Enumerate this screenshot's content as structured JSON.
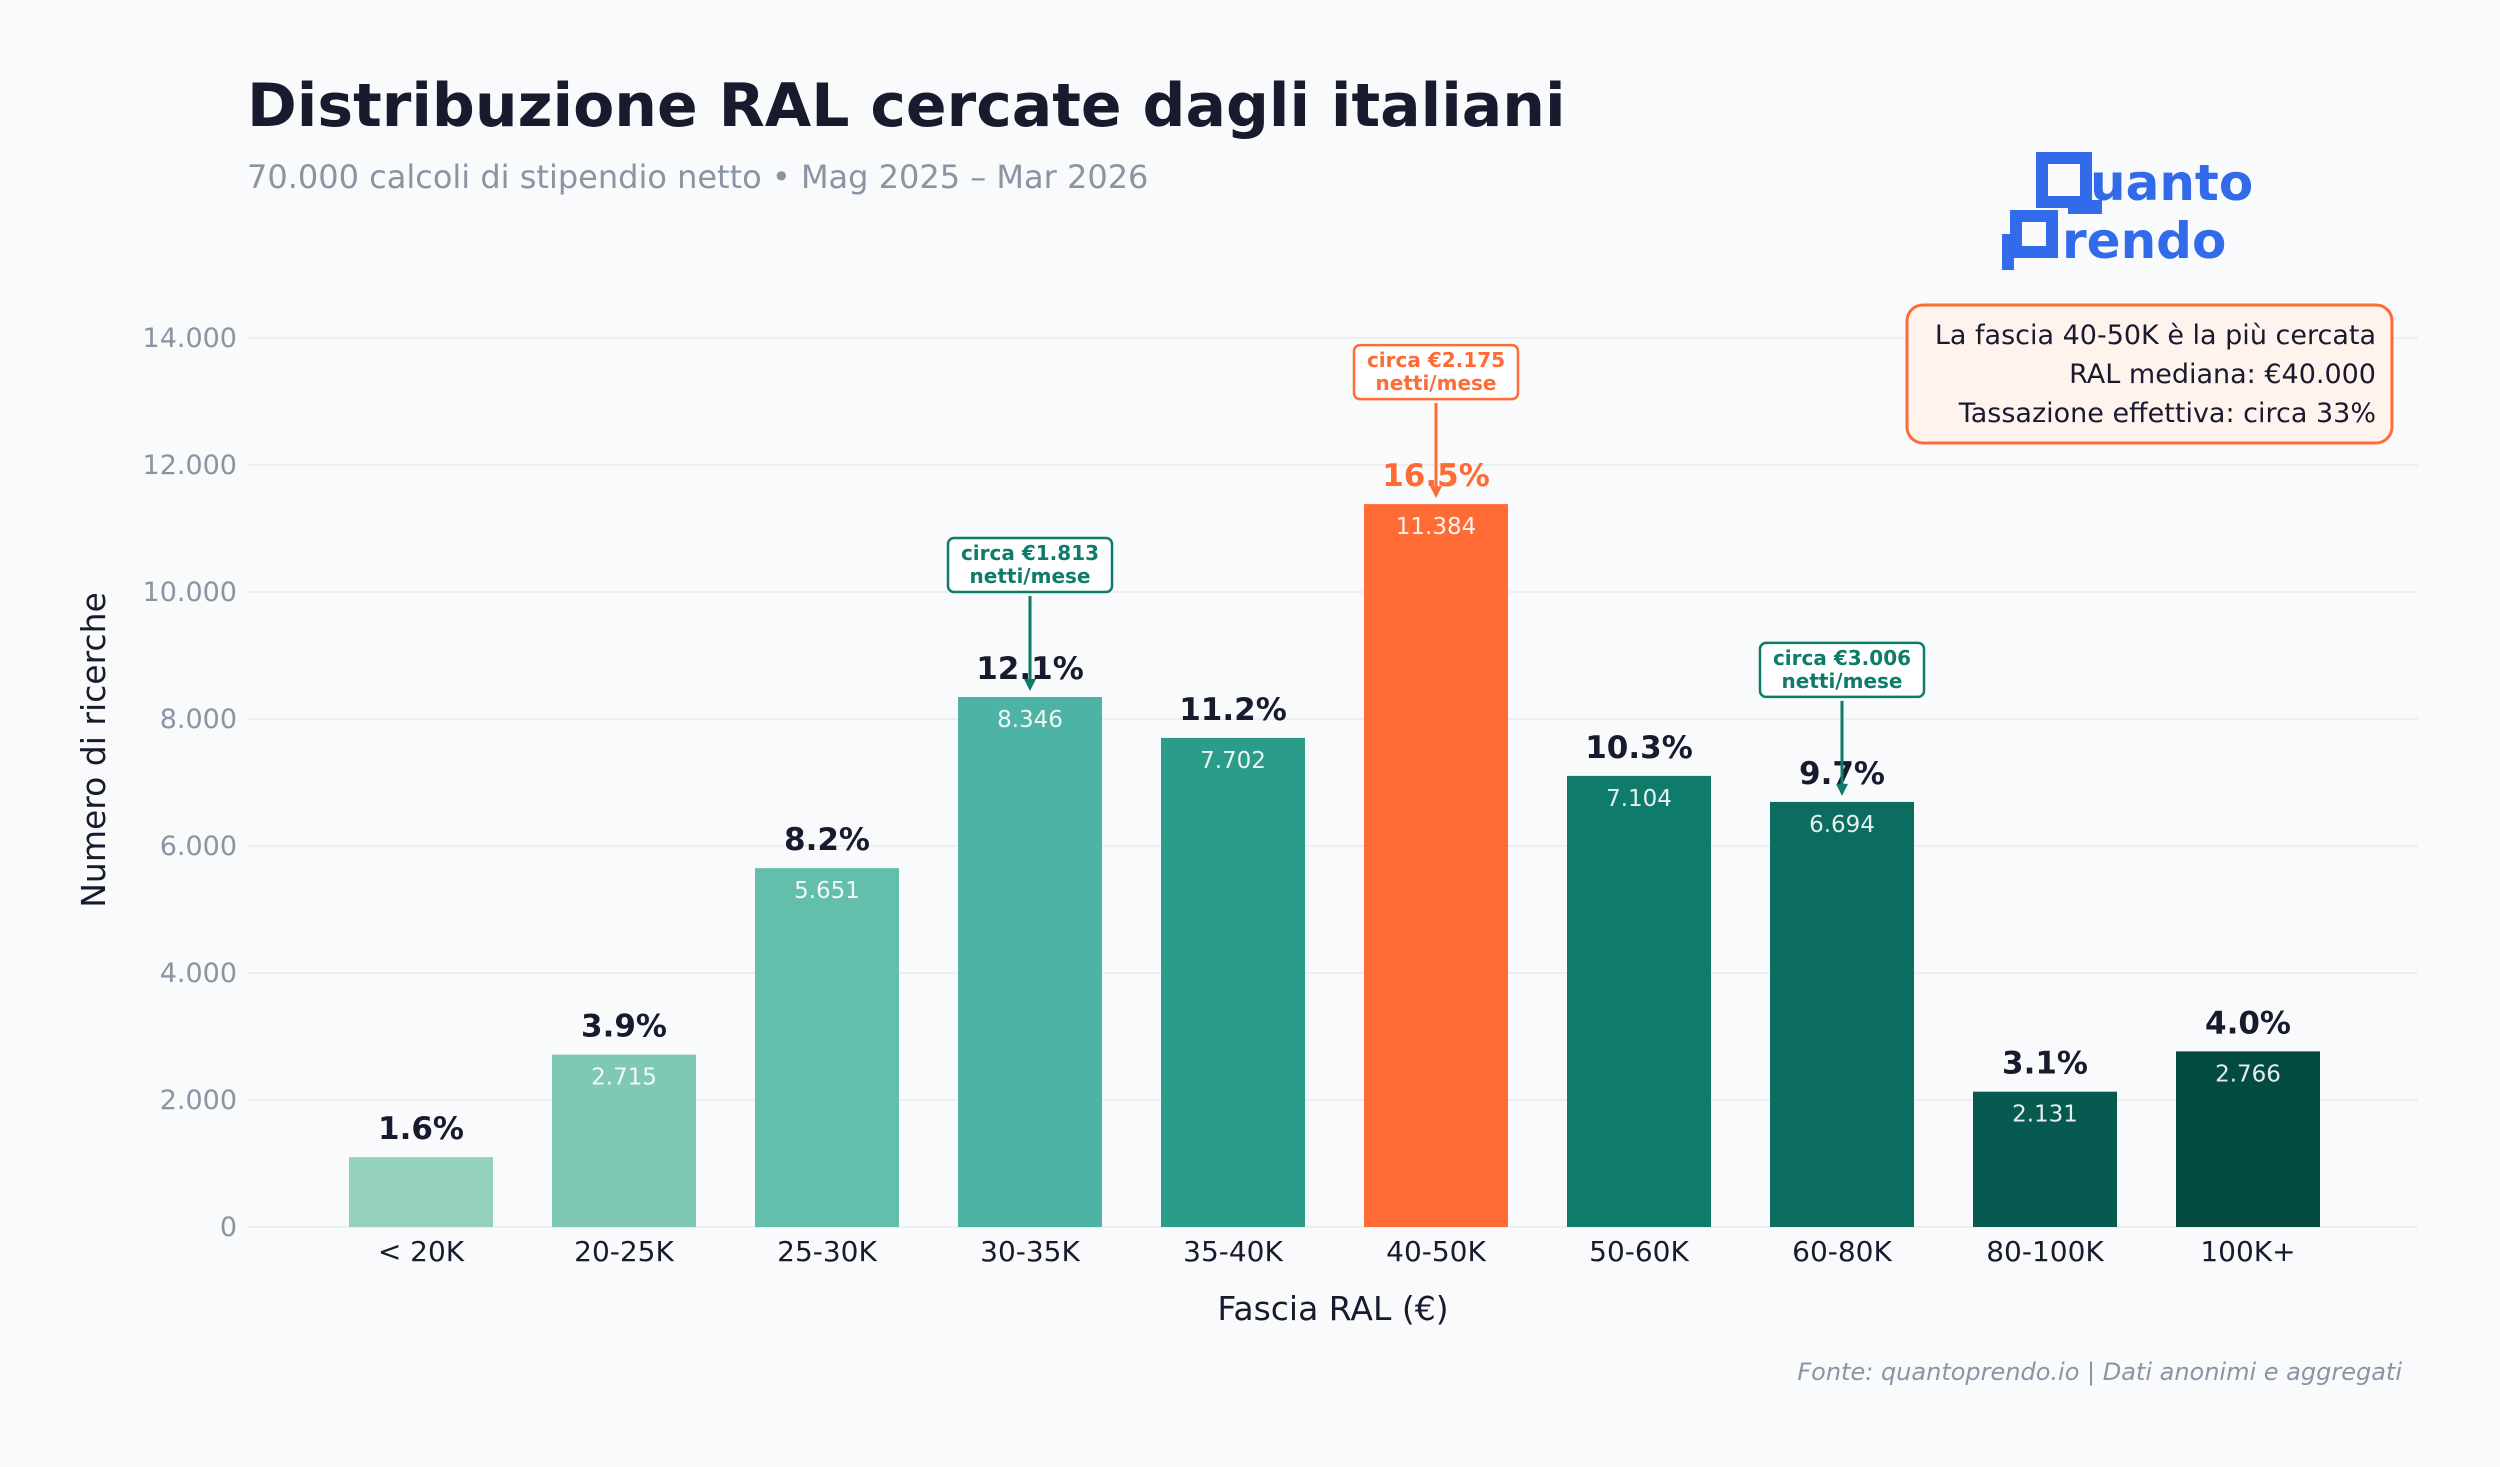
{
  "title": "Distribuzione RAL cercate dagli italiani",
  "subtitle": "70.000 calcoli di stipendio netto  •  Mag 2025 – Mar 2026",
  "logo": {
    "line1": "uanto",
    "line2": "rendo",
    "color": "#316bea"
  },
  "info_box": {
    "lines": [
      "La fascia 40-50K è la più cercata",
      "RAL mediana: €40.000",
      "Tassazione effettiva: circa 33%"
    ],
    "border_color": "#ff6b35",
    "fill_color": "#fff3ee"
  },
  "footer": "Fonte: quantoprendo.io  |  Dati anonimi e aggregati",
  "chart_data": {
    "type": "bar",
    "xlabel": "Fascia RAL (€)",
    "ylabel": "Numero di ricerche",
    "ylim": [
      0,
      14500
    ],
    "yticks": [
      0,
      2000,
      4000,
      6000,
      8000,
      10000,
      12000,
      14000
    ],
    "ytick_labels": [
      "0",
      "2.000",
      "4.000",
      "6.000",
      "8.000",
      "10.000",
      "12.000",
      "14.000"
    ],
    "grid": true,
    "categories": [
      "< 20K",
      "20-25K",
      "25-30K",
      "30-35K",
      "35-40K",
      "40-50K",
      "50-60K",
      "60-80K",
      "80-100K",
      "100K+"
    ],
    "values": [
      1100,
      2715,
      5651,
      8346,
      7702,
      11384,
      7104,
      6694,
      2131,
      2766
    ],
    "value_labels": [
      "",
      "2.715",
      "5.651",
      "8.346",
      "7.702",
      "11.384",
      "7.104",
      "6.694",
      "2.131",
      "2.766"
    ],
    "percent_labels": [
      "1.6%",
      "3.9%",
      "8.2%",
      "12.1%",
      "11.2%",
      "16.5%",
      "10.3%",
      "9.7%",
      "3.1%",
      "4.0%"
    ],
    "colors": [
      "#95d2bd",
      "#7ec8b4",
      "#63bfac",
      "#4db3a4",
      "#2c9c8a",
      "#ff6b35",
      "#0f7b6b",
      "#0c6c5f",
      "#075a4f",
      "#034b41"
    ],
    "highlight_index": 5,
    "annotations": [
      {
        "category": "30-35K",
        "lines": [
          "circa €1.813",
          "netti/mese"
        ],
        "color": "#0f7b6b"
      },
      {
        "category": "40-50K",
        "lines": [
          "circa €2.175",
          "netti/mese"
        ],
        "color": "#ff6b35"
      },
      {
        "category": "60-80K",
        "lines": [
          "circa €3.006",
          "netti/mese"
        ],
        "color": "#0f7b6b"
      }
    ]
  }
}
